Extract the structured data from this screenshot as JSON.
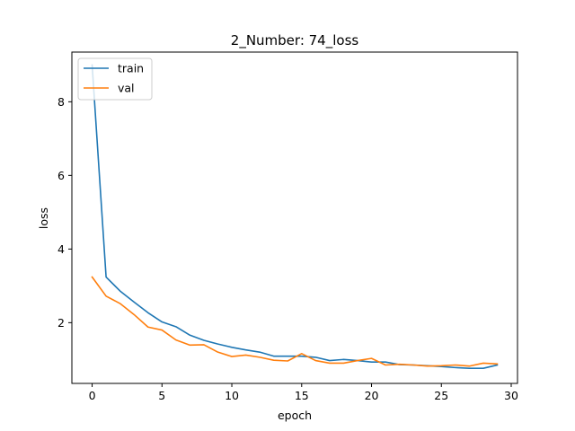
{
  "chart_data": {
    "type": "line",
    "title": "2_Number: 74_loss",
    "xlabel": "epoch",
    "ylabel": "loss",
    "xlim": [
      -1.45,
      30.45
    ],
    "ylim": [
      0.35,
      9.35
    ],
    "xticks": [
      0,
      5,
      10,
      15,
      20,
      25,
      30
    ],
    "yticks": [
      2,
      4,
      6,
      8
    ],
    "grid": false,
    "legend_position": "top-left",
    "x": [
      0,
      1,
      2,
      3,
      4,
      5,
      6,
      7,
      8,
      9,
      10,
      11,
      12,
      13,
      14,
      15,
      16,
      17,
      18,
      19,
      20,
      21,
      22,
      23,
      24,
      25,
      26,
      27,
      28,
      29
    ],
    "series": [
      {
        "name": "train",
        "color": "#1f77b4",
        "values": [
          9.0,
          3.24,
          2.86,
          2.56,
          2.27,
          2.02,
          1.89,
          1.66,
          1.52,
          1.42,
          1.33,
          1.26,
          1.2,
          1.09,
          1.09,
          1.09,
          1.06,
          0.97,
          1.0,
          0.97,
          0.93,
          0.93,
          0.86,
          0.85,
          0.83,
          0.81,
          0.78,
          0.76,
          0.76,
          0.85
        ]
      },
      {
        "name": "val",
        "color": "#ff7f0e",
        "values": [
          3.24,
          2.72,
          2.52,
          2.22,
          1.88,
          1.8,
          1.53,
          1.39,
          1.4,
          1.2,
          1.08,
          1.12,
          1.06,
          0.98,
          0.96,
          1.16,
          0.97,
          0.9,
          0.9,
          0.97,
          1.03,
          0.85,
          0.87,
          0.85,
          0.82,
          0.83,
          0.85,
          0.82,
          0.9,
          0.88
        ]
      }
    ]
  }
}
